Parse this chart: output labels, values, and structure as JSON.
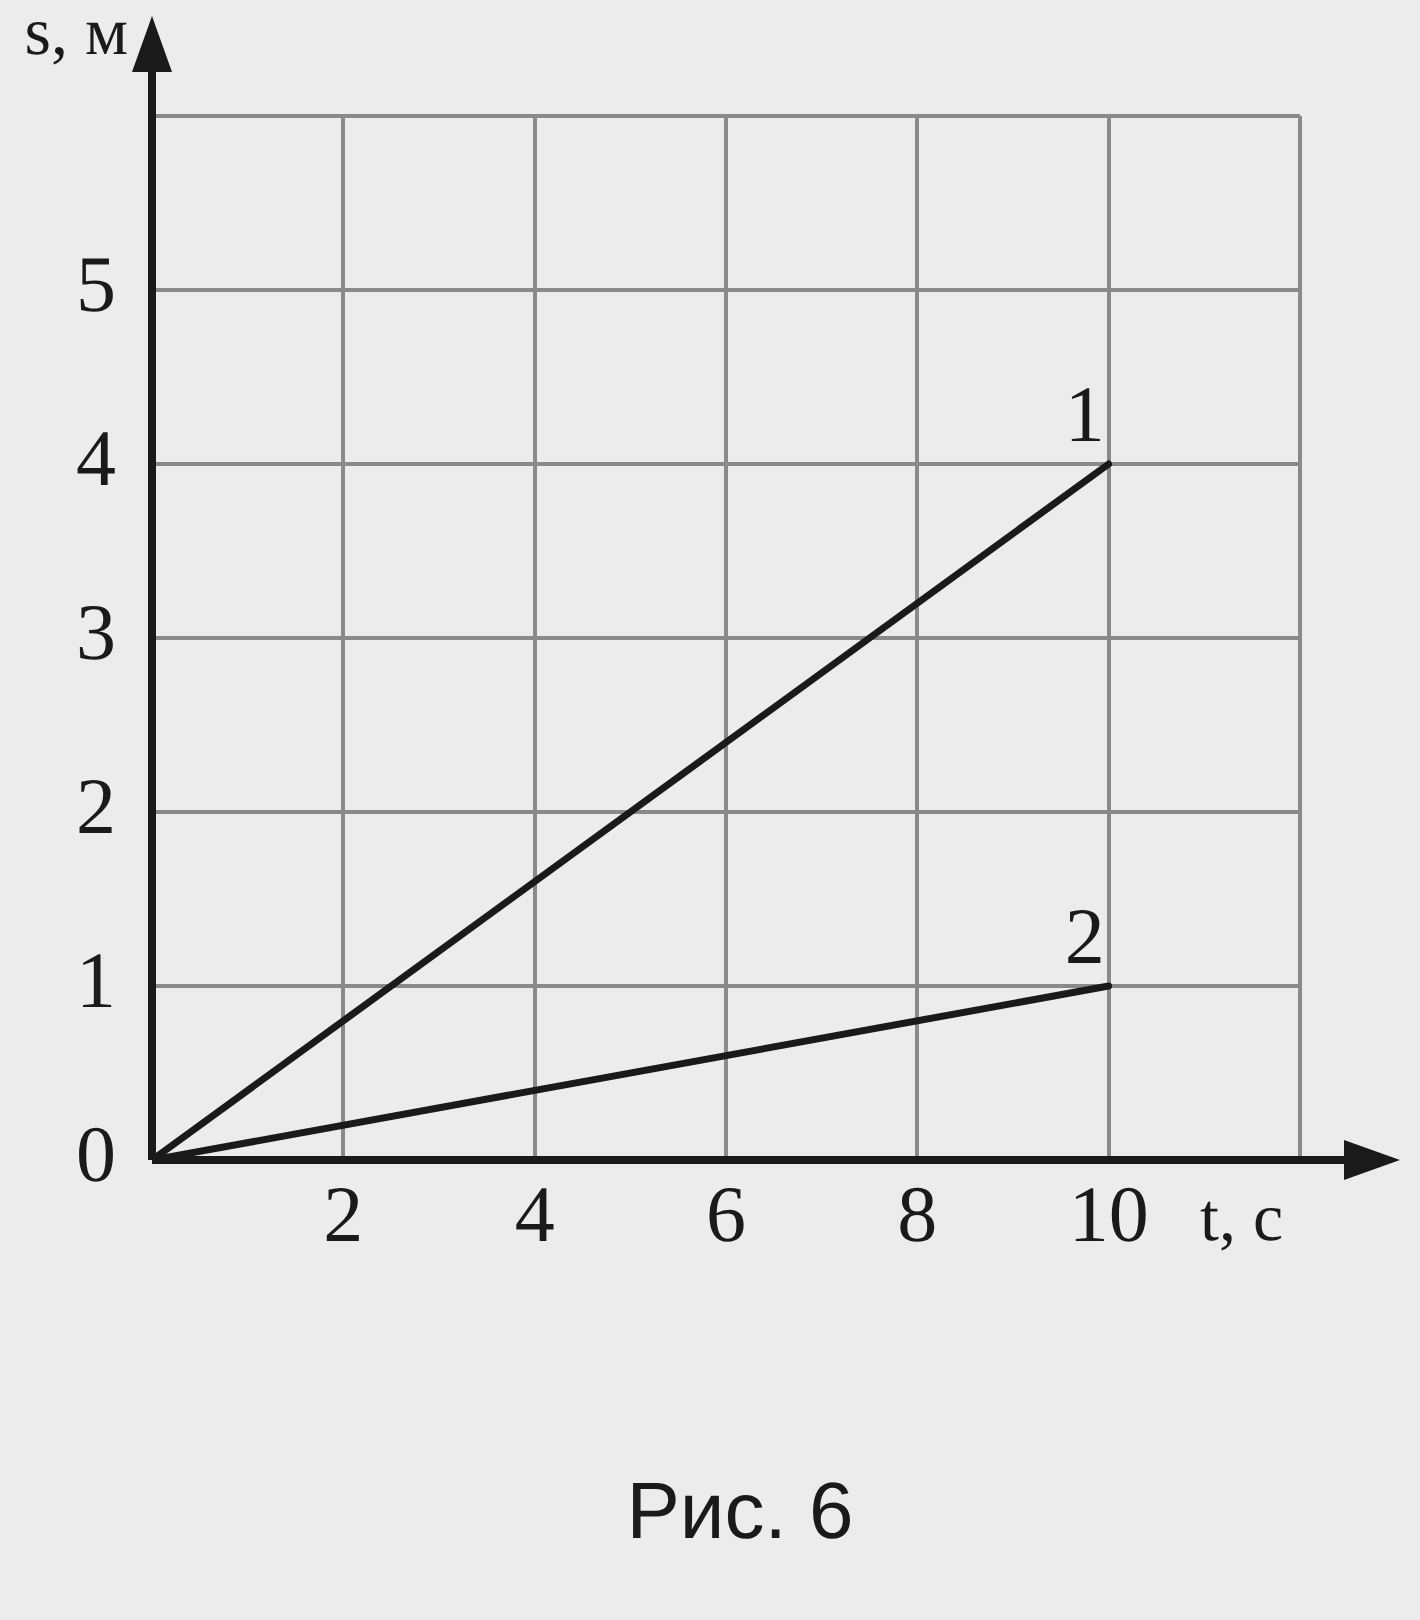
{
  "chart_data": {
    "type": "line",
    "xlabel": "t, с",
    "ylabel": "s, м",
    "annotations": [
      "Рис. 6"
    ],
    "x": [
      0,
      10
    ],
    "series": [
      {
        "name": "1",
        "color": "#1a1a1a",
        "values": [
          0,
          4
        ]
      },
      {
        "name": "2",
        "color": "#1a1a1a",
        "values": [
          0,
          1
        ]
      }
    ],
    "xlim": [
      0,
      12
    ],
    "xticks": [
      {
        "value": 0,
        "label": null
      },
      2,
      4,
      6,
      8,
      10,
      {
        "value": 12,
        "label": null
      }
    ],
    "ylim": [
      0,
      6
    ],
    "yticks": [
      0,
      1,
      2,
      3,
      4,
      5,
      {
        "value": 6,
        "label": null
      }
    ],
    "grid": true,
    "legend": false,
    "marker": "none",
    "line_style": "solid"
  }
}
